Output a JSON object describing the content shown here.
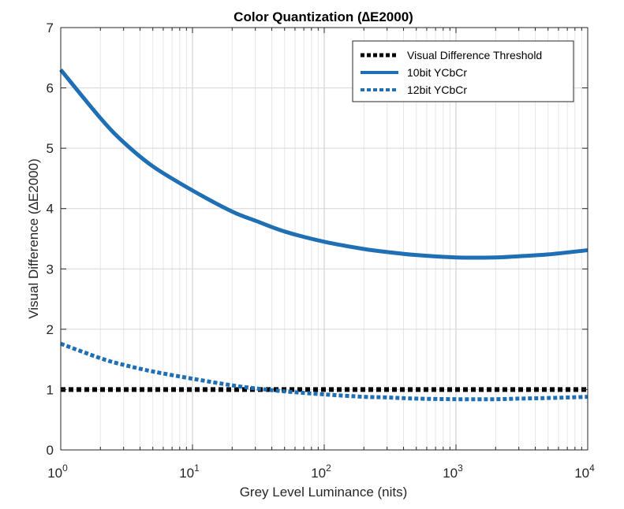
{
  "chart_data": {
    "type": "line",
    "title": "Color Quantization (∆E2000)",
    "xlabel": "Grey Level Luminance (nits)",
    "ylabel": "Visual Difference (∆E2000)",
    "xscale": "log",
    "xlim": [
      1,
      10000
    ],
    "ylim": [
      0,
      7
    ],
    "grid": true,
    "minor_grid": true,
    "legend_position": "top-right",
    "x_ticks": [
      {
        "value": 1,
        "base": "10",
        "exp": "0"
      },
      {
        "value": 10,
        "base": "10",
        "exp": "1"
      },
      {
        "value": 100,
        "base": "10",
        "exp": "2"
      },
      {
        "value": 1000,
        "base": "10",
        "exp": "3"
      },
      {
        "value": 10000,
        "base": "10",
        "exp": "4"
      }
    ],
    "y_ticks": [
      "0",
      "1",
      "2",
      "3",
      "4",
      "5",
      "6",
      "7"
    ],
    "series": [
      {
        "name": "Visual Difference Threshold",
        "color": "#000000",
        "style": "dotted",
        "x": [
          1,
          10000
        ],
        "y": [
          1.0,
          1.0
        ]
      },
      {
        "name": "10bit YCbCr",
        "color": "#1f6fb4",
        "style": "solid",
        "x": [
          1,
          2,
          3,
          5,
          10,
          20,
          30,
          50,
          100,
          200,
          300,
          500,
          1000,
          2000,
          3000,
          5000,
          10000
        ],
        "y": [
          6.3,
          5.5,
          5.1,
          4.7,
          4.3,
          3.95,
          3.8,
          3.62,
          3.45,
          3.33,
          3.28,
          3.23,
          3.19,
          3.19,
          3.21,
          3.24,
          3.31
        ]
      },
      {
        "name": "12bit YCbCr",
        "color": "#1f6fb4",
        "style": "dashed",
        "x": [
          1,
          2,
          3,
          5,
          10,
          20,
          30,
          50,
          100,
          200,
          300,
          500,
          1000,
          2000,
          3000,
          5000,
          10000
        ],
        "y": [
          1.76,
          1.52,
          1.41,
          1.3,
          1.18,
          1.07,
          1.02,
          0.97,
          0.92,
          0.88,
          0.87,
          0.85,
          0.84,
          0.84,
          0.85,
          0.86,
          0.88
        ]
      }
    ]
  }
}
